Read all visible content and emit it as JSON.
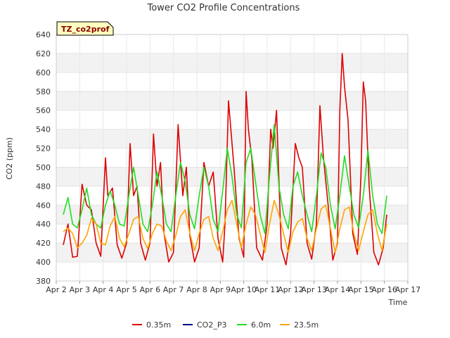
{
  "chart_data": {
    "type": "line",
    "title": "Tower CO2 Profile Concentrations",
    "badge": "TZ_co2prof",
    "xlabel": "Time",
    "ylabel": "CO2 (ppm)",
    "ylim": [
      380,
      640
    ],
    "yticks": [
      380,
      400,
      420,
      440,
      460,
      480,
      500,
      520,
      540,
      560,
      580,
      600,
      620,
      640
    ],
    "xlim": [
      2,
      17
    ],
    "xtick_labels": [
      "Apr 2",
      "Apr 3",
      "Apr 4",
      "Apr 5",
      "Apr 6",
      "Apr 7",
      "Apr 8",
      "Apr 9",
      "Apr 10",
      "Apr 11",
      "Apr 12",
      "Apr 13",
      "Apr 14",
      "Apr 15",
      "Apr 16",
      "Apr 17"
    ],
    "series": [
      {
        "name": "0.35m",
        "color": "#dd0000",
        "x": [
          2.3,
          2.5,
          2.7,
          2.9,
          3.1,
          3.3,
          3.5,
          3.7,
          3.9,
          4.1,
          4.2,
          4.4,
          4.6,
          4.8,
          5.0,
          5.15,
          5.3,
          5.45,
          5.6,
          5.8,
          6.0,
          6.15,
          6.3,
          6.45,
          6.6,
          6.8,
          7.0,
          7.2,
          7.4,
          7.55,
          7.7,
          7.9,
          8.1,
          8.3,
          8.5,
          8.7,
          8.9,
          9.1,
          9.2,
          9.35,
          9.6,
          9.8,
          10.0,
          10.1,
          10.2,
          10.35,
          10.55,
          10.8,
          11.0,
          11.15,
          11.25,
          11.4,
          11.6,
          11.8,
          12.0,
          12.2,
          12.35,
          12.5,
          12.7,
          12.9,
          13.1,
          13.25,
          13.4,
          13.6,
          13.8,
          14.0,
          14.1,
          14.2,
          14.3,
          14.45,
          14.65,
          14.85,
          15.0,
          15.1,
          15.2,
          15.35,
          15.55,
          15.75,
          15.95,
          16.1
        ],
        "values": [
          418,
          440,
          405,
          406,
          482,
          460,
          455,
          420,
          406,
          510,
          470,
          478,
          418,
          404,
          420,
          525,
          470,
          480,
          420,
          402,
          420,
          535,
          480,
          505,
          430,
          400,
          410,
          545,
          470,
          500,
          428,
          400,
          415,
          505,
          480,
          495,
          425,
          400,
          440,
          570,
          495,
          425,
          405,
          580,
          540,
          508,
          415,
          402,
          440,
          540,
          520,
          560,
          415,
          397,
          430,
          525,
          510,
          500,
          420,
          403,
          440,
          565,
          510,
          460,
          402,
          420,
          560,
          620,
          585,
          550,
          430,
          408,
          490,
          590,
          570,
          480,
          410,
          397,
          415,
          450
        ]
      },
      {
        "name": "CO2_P3",
        "color": "#00008b",
        "x": [],
        "values": []
      },
      {
        "name": "6.0m",
        "color": "#22dd22",
        "x": [
          2.3,
          2.5,
          2.7,
          2.9,
          3.1,
          3.3,
          3.5,
          3.7,
          3.9,
          4.1,
          4.3,
          4.5,
          4.7,
          4.9,
          5.1,
          5.3,
          5.5,
          5.7,
          5.9,
          6.1,
          6.3,
          6.5,
          6.7,
          6.9,
          7.1,
          7.3,
          7.5,
          7.7,
          7.9,
          8.1,
          8.3,
          8.5,
          8.7,
          8.9,
          9.1,
          9.3,
          9.5,
          9.7,
          9.9,
          10.1,
          10.3,
          10.5,
          10.7,
          10.9,
          11.1,
          11.3,
          11.5,
          11.7,
          11.9,
          12.1,
          12.3,
          12.5,
          12.7,
          12.9,
          13.1,
          13.3,
          13.5,
          13.7,
          13.9,
          14.1,
          14.3,
          14.5,
          14.7,
          14.9,
          15.1,
          15.3,
          15.5,
          15.7,
          15.9,
          16.1
        ],
        "values": [
          450,
          468,
          440,
          436,
          455,
          478,
          450,
          440,
          436,
          460,
          475,
          460,
          440,
          438,
          470,
          500,
          470,
          440,
          432,
          460,
          495,
          470,
          440,
          432,
          470,
          505,
          485,
          450,
          435,
          470,
          500,
          480,
          445,
          432,
          475,
          520,
          490,
          450,
          436,
          505,
          520,
          485,
          450,
          430,
          490,
          545,
          480,
          450,
          435,
          480,
          495,
          470,
          450,
          432,
          470,
          515,
          500,
          460,
          435,
          470,
          512,
          480,
          450,
          436,
          470,
          518,
          470,
          440,
          430,
          470
        ]
      },
      {
        "name": "23.5m",
        "color": "#ffa500",
        "x": [
          2.3,
          2.5,
          2.7,
          2.9,
          3.1,
          3.3,
          3.5,
          3.7,
          3.9,
          4.1,
          4.3,
          4.5,
          4.7,
          4.9,
          5.1,
          5.3,
          5.5,
          5.7,
          5.9,
          6.1,
          6.3,
          6.5,
          6.7,
          6.9,
          7.1,
          7.3,
          7.5,
          7.7,
          7.9,
          8.1,
          8.3,
          8.5,
          8.7,
          8.9,
          9.1,
          9.3,
          9.5,
          9.7,
          9.9,
          10.1,
          10.3,
          10.5,
          10.7,
          10.9,
          11.1,
          11.3,
          11.5,
          11.7,
          11.9,
          12.1,
          12.3,
          12.5,
          12.7,
          12.9,
          13.1,
          13.3,
          13.5,
          13.7,
          13.9,
          14.1,
          14.3,
          14.5,
          14.7,
          14.9,
          15.1,
          15.3,
          15.5,
          15.7,
          15.9,
          16.1
        ],
        "values": [
          432,
          436,
          430,
          415,
          420,
          428,
          446,
          440,
          420,
          418,
          438,
          448,
          425,
          416,
          430,
          445,
          448,
          425,
          414,
          430,
          440,
          438,
          422,
          412,
          428,
          448,
          455,
          430,
          412,
          430,
          445,
          448,
          425,
          412,
          432,
          455,
          465,
          440,
          415,
          440,
          458,
          450,
          430,
          410,
          440,
          465,
          450,
          430,
          410,
          432,
          442,
          446,
          425,
          412,
          435,
          456,
          460,
          435,
          410,
          435,
          455,
          458,
          430,
          412,
          432,
          450,
          455,
          430,
          412,
          440
        ]
      }
    ]
  }
}
